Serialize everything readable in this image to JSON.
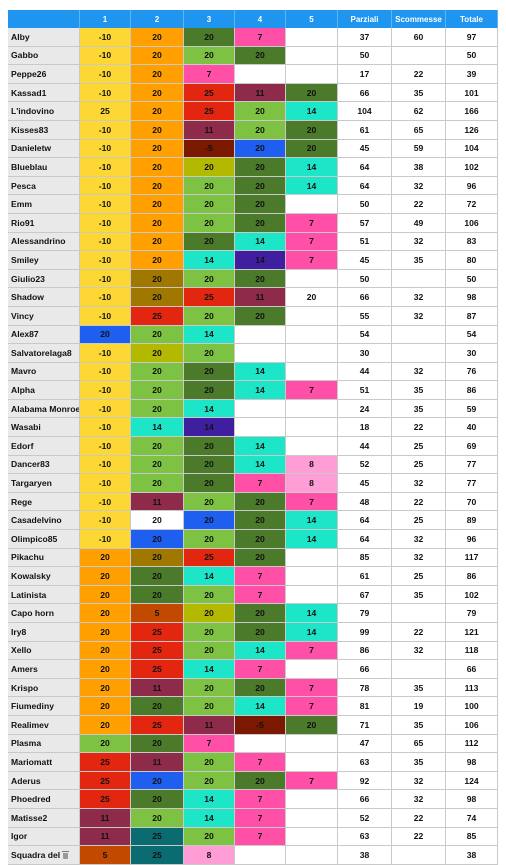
{
  "header": {
    "columns": [
      "",
      "1",
      "2",
      "3",
      "4",
      "5",
      "Parziali",
      "Scommesse",
      "Totale"
    ]
  },
  "colors": {
    "y": "#fdd835",
    "o": "#ffa000",
    "g": "#7dc242",
    "dg": "#4a7a2a",
    "pk": "#ff4fa7",
    "r": "#e3260f",
    "m": "#8e2a4a",
    "t": "#1de6c8",
    "b": "#1e5ff0",
    "pu": "#3f1fa0",
    "br": "#a07800",
    "ol": "#b3b800",
    "dr": "#7a1800",
    "lp": "#ff9ed6",
    "tl": "#0a6c70",
    "w": "#ffffff",
    "rb": "#c24a00",
    "lg": "#f4f4f4",
    "gy": "#8fcf6a"
  },
  "rows": [
    {
      "name": "Alby",
      "c": [
        [
          "-10",
          "y"
        ],
        [
          "20",
          "o"
        ],
        [
          "20",
          "dg"
        ],
        [
          "7",
          "pk"
        ],
        [
          "",
          "w"
        ]
      ],
      "parziali": "37",
      "scommesse": "60",
      "totale": "97"
    },
    {
      "name": "Gabbo",
      "c": [
        [
          "-10",
          "y"
        ],
        [
          "20",
          "o"
        ],
        [
          "20",
          "g"
        ],
        [
          "20",
          "dg"
        ],
        [
          "",
          "w"
        ]
      ],
      "parziali": "50",
      "scommesse": "",
      "totale": "50"
    },
    {
      "name": "Peppe26",
      "c": [
        [
          "-10",
          "y"
        ],
        [
          "20",
          "o"
        ],
        [
          "7",
          "pk"
        ],
        [
          "",
          "w"
        ],
        [
          "",
          "w"
        ]
      ],
      "parziali": "17",
      "scommesse": "22",
      "totale": "39"
    },
    {
      "name": "Kassad1",
      "c": [
        [
          "-10",
          "y"
        ],
        [
          "20",
          "o"
        ],
        [
          "25",
          "r"
        ],
        [
          "11",
          "m"
        ],
        [
          "20",
          "dg"
        ]
      ],
      "parziali": "66",
      "scommesse": "35",
      "totale": "101"
    },
    {
      "name": "L'indovino",
      "c": [
        [
          "25",
          "y"
        ],
        [
          "20",
          "o"
        ],
        [
          "25",
          "r"
        ],
        [
          "20",
          "g"
        ],
        [
          "14",
          "t"
        ]
      ],
      "parziali": "104",
      "scommesse": "62",
      "totale": "166"
    },
    {
      "name": "Kisses83",
      "c": [
        [
          "-10",
          "y"
        ],
        [
          "20",
          "o"
        ],
        [
          "11",
          "m"
        ],
        [
          "20",
          "g"
        ],
        [
          "20",
          "dg"
        ]
      ],
      "parziali": "61",
      "scommesse": "65",
      "totale": "126"
    },
    {
      "name": "Danieletw",
      "c": [
        [
          "-10",
          "y"
        ],
        [
          "20",
          "o"
        ],
        [
          "-5",
          "dr"
        ],
        [
          "20",
          "b"
        ],
        [
          "20",
          "dg"
        ]
      ],
      "parziali": "45",
      "scommesse": "59",
      "totale": "104"
    },
    {
      "name": "Blueblau",
      "c": [
        [
          "-10",
          "y"
        ],
        [
          "20",
          "o"
        ],
        [
          "20",
          "ol"
        ],
        [
          "20",
          "dg"
        ],
        [
          "14",
          "t"
        ]
      ],
      "parziali": "64",
      "scommesse": "38",
      "totale": "102"
    },
    {
      "name": "Pesca",
      "c": [
        [
          "-10",
          "y"
        ],
        [
          "20",
          "o"
        ],
        [
          "20",
          "g"
        ],
        [
          "20",
          "dg"
        ],
        [
          "14",
          "t"
        ]
      ],
      "parziali": "64",
      "scommesse": "32",
      "totale": "96"
    },
    {
      "name": "Emm",
      "c": [
        [
          "-10",
          "y"
        ],
        [
          "20",
          "o"
        ],
        [
          "20",
          "g"
        ],
        [
          "20",
          "dg"
        ],
        [
          "",
          "w"
        ]
      ],
      "parziali": "50",
      "scommesse": "22",
      "totale": "72"
    },
    {
      "name": "Rio91",
      "c": [
        [
          "-10",
          "y"
        ],
        [
          "20",
          "o"
        ],
        [
          "20",
          "g"
        ],
        [
          "20",
          "dg"
        ],
        [
          "7",
          "pk"
        ]
      ],
      "parziali": "57",
      "scommesse": "49",
      "totale": "106"
    },
    {
      "name": "Alessandrino",
      "c": [
        [
          "-10",
          "y"
        ],
        [
          "20",
          "o"
        ],
        [
          "20",
          "dg"
        ],
        [
          "14",
          "t"
        ],
        [
          "7",
          "pk"
        ]
      ],
      "parziali": "51",
      "scommesse": "32",
      "totale": "83"
    },
    {
      "name": "Smiley",
      "c": [
        [
          "-10",
          "y"
        ],
        [
          "20",
          "o"
        ],
        [
          "14",
          "t"
        ],
        [
          "14",
          "pu"
        ],
        [
          "7",
          "pk"
        ]
      ],
      "parziali": "45",
      "scommesse": "35",
      "totale": "80"
    },
    {
      "name": "Giulio23",
      "c": [
        [
          "-10",
          "y"
        ],
        [
          "20",
          "br"
        ],
        [
          "20",
          "g"
        ],
        [
          "20",
          "dg"
        ],
        [
          "",
          "w"
        ]
      ],
      "parziali": "50",
      "scommesse": "",
      "totale": "50"
    },
    {
      "name": "Shadow",
      "c": [
        [
          "-10",
          "y"
        ],
        [
          "20",
          "br"
        ],
        [
          "25",
          "r"
        ],
        [
          "11",
          "m"
        ],
        [
          "20",
          "w"
        ]
      ],
      "parziali": "66",
      "scommesse": "32",
      "totale": "98"
    },
    {
      "name": "Vincy",
      "c": [
        [
          "-10",
          "y"
        ],
        [
          "25",
          "r"
        ],
        [
          "20",
          "g"
        ],
        [
          "20",
          "dg"
        ],
        [
          "",
          "w"
        ]
      ],
      "parziali": "55",
      "scommesse": "32",
      "totale": "87"
    },
    {
      "name": "Alex87",
      "c": [
        [
          "20",
          "b"
        ],
        [
          "20",
          "g"
        ],
        [
          "14",
          "t"
        ],
        [
          "",
          "w"
        ],
        [
          "",
          "w"
        ]
      ],
      "parziali": "54",
      "scommesse": "",
      "totale": "54"
    },
    {
      "name": "Salvatorelaga8",
      "c": [
        [
          "-10",
          "y"
        ],
        [
          "20",
          "ol"
        ],
        [
          "20",
          "g"
        ],
        [
          "",
          "w"
        ],
        [
          "",
          "w"
        ]
      ],
      "parziali": "30",
      "scommesse": "",
      "totale": "30"
    },
    {
      "name": "Mavro",
      "c": [
        [
          "-10",
          "y"
        ],
        [
          "20",
          "g"
        ],
        [
          "20",
          "dg"
        ],
        [
          "14",
          "t"
        ],
        [
          "",
          "w"
        ]
      ],
      "parziali": "44",
      "scommesse": "32",
      "totale": "76"
    },
    {
      "name": "Alpha",
      "c": [
        [
          "-10",
          "y"
        ],
        [
          "20",
          "g"
        ],
        [
          "20",
          "dg"
        ],
        [
          "14",
          "t"
        ],
        [
          "7",
          "pk"
        ]
      ],
      "parziali": "51",
      "scommesse": "35",
      "totale": "86"
    },
    {
      "name": "Alabama Monroe",
      "c": [
        [
          "-10",
          "y"
        ],
        [
          "20",
          "g"
        ],
        [
          "14",
          "t"
        ],
        [
          "",
          "w"
        ],
        [
          "",
          "w"
        ]
      ],
      "parziali": "24",
      "scommesse": "35",
      "totale": "59"
    },
    {
      "name": "Wasabi",
      "c": [
        [
          "-10",
          "y"
        ],
        [
          "14",
          "t"
        ],
        [
          "14",
          "pu"
        ],
        [
          "",
          "w"
        ],
        [
          "",
          "w"
        ]
      ],
      "parziali": "18",
      "scommesse": "22",
      "totale": "40"
    },
    {
      "name": "Edorf",
      "c": [
        [
          "-10",
          "y"
        ],
        [
          "20",
          "g"
        ],
        [
          "20",
          "dg"
        ],
        [
          "14",
          "t"
        ],
        [
          "",
          "w"
        ]
      ],
      "parziali": "44",
      "scommesse": "25",
      "totale": "69"
    },
    {
      "name": "Dancer83",
      "c": [
        [
          "-10",
          "y"
        ],
        [
          "20",
          "g"
        ],
        [
          "20",
          "dg"
        ],
        [
          "14",
          "t"
        ],
        [
          "8",
          "lp"
        ]
      ],
      "parziali": "52",
      "scommesse": "25",
      "totale": "77"
    },
    {
      "name": "Targaryen",
      "c": [
        [
          "-10",
          "y"
        ],
        [
          "20",
          "g"
        ],
        [
          "20",
          "dg"
        ],
        [
          "7",
          "pk"
        ],
        [
          "8",
          "lp"
        ]
      ],
      "parziali": "45",
      "scommesse": "32",
      "totale": "77"
    },
    {
      "name": "Rege",
      "c": [
        [
          "-10",
          "y"
        ],
        [
          "11",
          "m"
        ],
        [
          "20",
          "g"
        ],
        [
          "20",
          "dg"
        ],
        [
          "7",
          "pk"
        ]
      ],
      "parziali": "48",
      "scommesse": "22",
      "totale": "70"
    },
    {
      "name": "Casadelvino",
      "c": [
        [
          "-10",
          "y"
        ],
        [
          "20",
          "w"
        ],
        [
          "20",
          "b"
        ],
        [
          "20",
          "dg"
        ],
        [
          "14",
          "t"
        ]
      ],
      "parziali": "64",
      "scommesse": "25",
      "totale": "89"
    },
    {
      "name": "Olimpico85",
      "c": [
        [
          "-10",
          "y"
        ],
        [
          "20",
          "b"
        ],
        [
          "20",
          "g"
        ],
        [
          "20",
          "dg"
        ],
        [
          "14",
          "t"
        ]
      ],
      "parziali": "64",
      "scommesse": "32",
      "totale": "96"
    },
    {
      "name": "Pikachu",
      "c": [
        [
          "20",
          "o"
        ],
        [
          "20",
          "br"
        ],
        [
          "25",
          "r"
        ],
        [
          "20",
          "dg"
        ],
        [
          "",
          "w"
        ]
      ],
      "parziali": "85",
      "scommesse": "32",
      "totale": "117"
    },
    {
      "name": "Kowalsky",
      "c": [
        [
          "20",
          "o"
        ],
        [
          "20",
          "dg"
        ],
        [
          "14",
          "t"
        ],
        [
          "7",
          "pk"
        ],
        [
          "",
          "w"
        ]
      ],
      "parziali": "61",
      "scommesse": "25",
      "totale": "86"
    },
    {
      "name": "Latinista",
      "c": [
        [
          "20",
          "o"
        ],
        [
          "20",
          "dg"
        ],
        [
          "20",
          "g"
        ],
        [
          "7",
          "pk"
        ],
        [
          "",
          "w"
        ]
      ],
      "parziali": "67",
      "scommesse": "35",
      "totale": "102"
    },
    {
      "name": "Capo horn",
      "c": [
        [
          "20",
          "o"
        ],
        [
          "5",
          "rb"
        ],
        [
          "20",
          "ol"
        ],
        [
          "20",
          "dg"
        ],
        [
          "14",
          "t"
        ]
      ],
      "parziali": "79",
      "scommesse": "",
      "totale": "79"
    },
    {
      "name": "Iry8",
      "c": [
        [
          "20",
          "o"
        ],
        [
          "25",
          "r"
        ],
        [
          "20",
          "g"
        ],
        [
          "20",
          "dg"
        ],
        [
          "14",
          "t"
        ]
      ],
      "parziali": "99",
      "scommesse": "22",
      "totale": "121"
    },
    {
      "name": "Xello",
      "c": [
        [
          "20",
          "o"
        ],
        [
          "25",
          "r"
        ],
        [
          "20",
          "g"
        ],
        [
          "14",
          "t"
        ],
        [
          "7",
          "pk"
        ]
      ],
      "parziali": "86",
      "scommesse": "32",
      "totale": "118"
    },
    {
      "name": "Amers",
      "c": [
        [
          "20",
          "o"
        ],
        [
          "25",
          "r"
        ],
        [
          "14",
          "t"
        ],
        [
          "7",
          "pk"
        ],
        [
          "",
          "w"
        ]
      ],
      "parziali": "66",
      "scommesse": "",
      "totale": "66"
    },
    {
      "name": "Krispo",
      "c": [
        [
          "20",
          "o"
        ],
        [
          "11",
          "m"
        ],
        [
          "20",
          "g"
        ],
        [
          "20",
          "dg"
        ],
        [
          "7",
          "pk"
        ]
      ],
      "parziali": "78",
      "scommesse": "35",
      "totale": "113"
    },
    {
      "name": "Fiumediny",
      "c": [
        [
          "20",
          "o"
        ],
        [
          "20",
          "dg"
        ],
        [
          "20",
          "g"
        ],
        [
          "14",
          "t"
        ],
        [
          "7",
          "pk"
        ]
      ],
      "parziali": "81",
      "scommesse": "19",
      "totale": "100"
    },
    {
      "name": "Realimev",
      "c": [
        [
          "20",
          "o"
        ],
        [
          "25",
          "r"
        ],
        [
          "11",
          "m"
        ],
        [
          "-5",
          "dr"
        ],
        [
          "20",
          "dg"
        ]
      ],
      "parziali": "71",
      "scommesse": "35",
      "totale": "106"
    },
    {
      "name": "Plasma",
      "c": [
        [
          "20",
          "g"
        ],
        [
          "20",
          "dg"
        ],
        [
          "7",
          "pk"
        ],
        [
          "",
          "w"
        ],
        [
          "",
          "w"
        ]
      ],
      "parziali": "47",
      "scommesse": "65",
      "totale": "112"
    },
    {
      "name": "Mariomatt",
      "c": [
        [
          "25",
          "r"
        ],
        [
          "11",
          "m"
        ],
        [
          "20",
          "g"
        ],
        [
          "7",
          "pk"
        ],
        [
          "",
          "w"
        ]
      ],
      "parziali": "63",
      "scommesse": "35",
      "totale": "98"
    },
    {
      "name": "Aderus",
      "c": [
        [
          "25",
          "r"
        ],
        [
          "20",
          "b"
        ],
        [
          "20",
          "g"
        ],
        [
          "20",
          "dg"
        ],
        [
          "7",
          "pk"
        ]
      ],
      "parziali": "92",
      "scommesse": "32",
      "totale": "124"
    },
    {
      "name": "Phoedred",
      "c": [
        [
          "25",
          "r"
        ],
        [
          "20",
          "dg"
        ],
        [
          "14",
          "t"
        ],
        [
          "7",
          "pk"
        ],
        [
          "",
          "w"
        ]
      ],
      "parziali": "66",
      "scommesse": "32",
      "totale": "98"
    },
    {
      "name": "Matisse2",
      "c": [
        [
          "11",
          "m"
        ],
        [
          "20",
          "g"
        ],
        [
          "14",
          "t"
        ],
        [
          "7",
          "pk"
        ],
        [
          "",
          "w"
        ]
      ],
      "parziali": "52",
      "scommesse": "22",
      "totale": "74"
    },
    {
      "name": "Igor",
      "c": [
        [
          "11",
          "m"
        ],
        [
          "25",
          "tl"
        ],
        [
          "20",
          "g"
        ],
        [
          "7",
          "pk"
        ],
        [
          "",
          "w"
        ]
      ],
      "parziali": "63",
      "scommesse": "22",
      "totale": "85"
    },
    {
      "name": "Squadra del",
      "icon": "trash-icon",
      "c": [
        [
          "5",
          "rb"
        ],
        [
          "25",
          "tl"
        ],
        [
          "8",
          "lp"
        ],
        [
          "",
          "w"
        ],
        [
          "",
          "w"
        ]
      ],
      "parziali": "38",
      "scommesse": "",
      "totale": "38"
    }
  ]
}
